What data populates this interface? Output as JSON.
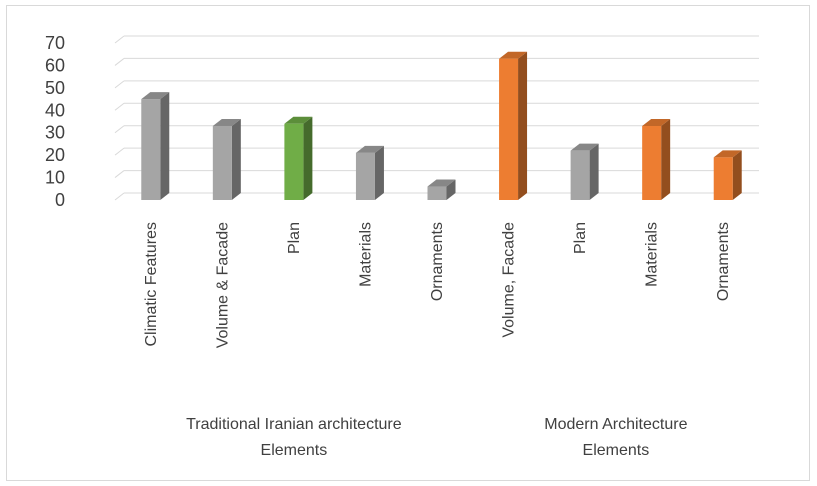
{
  "chart_data": {
    "type": "bar",
    "style": "3d-column",
    "ylim": [
      0,
      70
    ],
    "yticks": [
      0,
      10,
      20,
      30,
      40,
      50,
      60,
      70
    ],
    "grid": true,
    "legend": "none",
    "groups": [
      {
        "label_lines": [
          "Traditional Iranian architecture",
          "Elements"
        ],
        "categories": [
          "Climatic Features",
          "Volume & Facade",
          "Plan",
          "Materials",
          "Ornaments"
        ],
        "values": [
          45,
          33,
          34,
          21,
          6
        ],
        "colors": [
          "#a5a5a5",
          "#a5a5a5",
          "#70ad47",
          "#a5a5a5",
          "#a5a5a5"
        ]
      },
      {
        "label_lines": [
          "Modern  Architecture",
          "Elements"
        ],
        "categories": [
          "Volume, Facade",
          "Plan",
          "Materials",
          "Ornaments"
        ],
        "values": [
          63,
          22,
          33,
          19
        ],
        "colors": [
          "#ed7d31",
          "#a5a5a5",
          "#ed7d31",
          "#ed7d31"
        ]
      }
    ]
  }
}
